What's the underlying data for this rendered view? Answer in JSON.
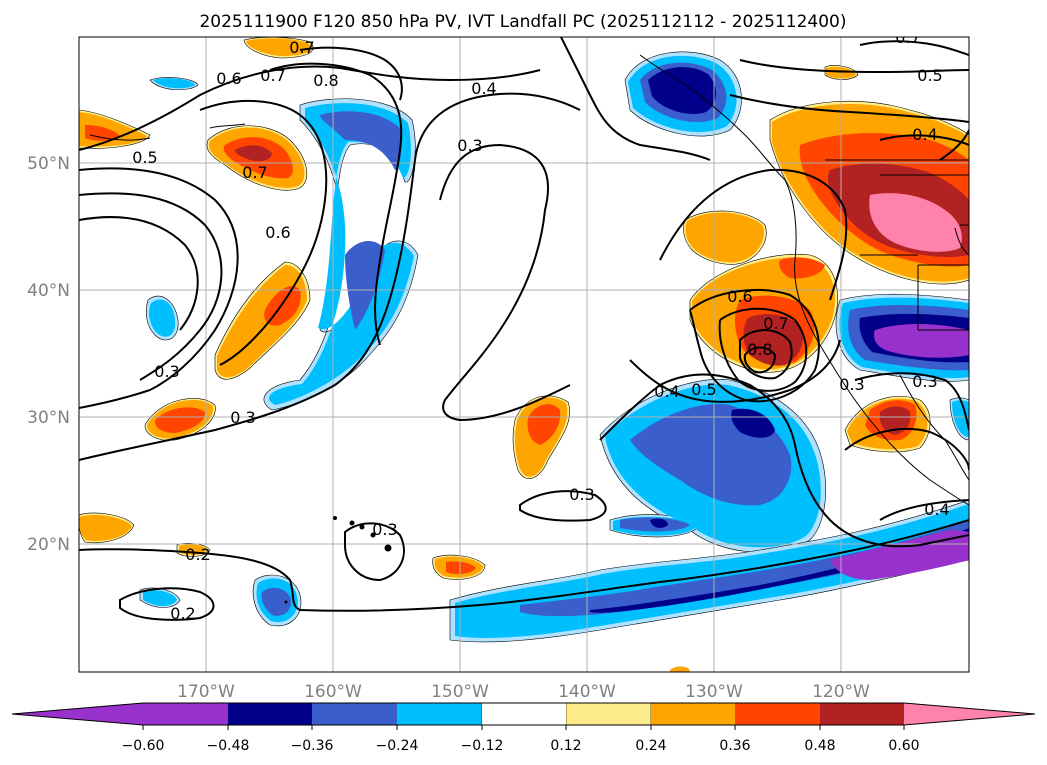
{
  "title": "2025111900 F120 850 hPa PV, IVT Landfall PC (2025112112 - 2025112400)",
  "colors": {
    "n060": "#9932cc",
    "n048": "#00008b",
    "n036": "#3a5fcd",
    "n024": "#00bfff",
    "n012": "#b0e2ff",
    "zero": "#ffffff",
    "p012": "#ffec8b",
    "p024": "#ffa500",
    "p036": "#ff4500",
    "p048": "#b22222",
    "p060": "#ff82ab",
    "grid": "#b0b0b0",
    "axis_text": "#808080"
  },
  "map": {
    "lon_ticks": [
      "170°W",
      "160°W",
      "150°W",
      "140°W",
      "130°W",
      "120°W"
    ],
    "lat_ticks": [
      "50°N",
      "40°N",
      "30°N",
      "20°N"
    ]
  },
  "colorbar": {
    "ticks": [
      "−0.60",
      "−0.48",
      "−0.36",
      "−0.24",
      "−0.12",
      "0.12",
      "0.24",
      "0.36",
      "0.48",
      "0.60"
    ]
  },
  "contour_labels": {
    "c1": "0.7",
    "c2": "0.6",
    "c3": "0.7",
    "c4": "0.8",
    "c5": "0.4",
    "c6": "0.3",
    "c7": "0.5",
    "c8": "0.7",
    "c9": "0.6",
    "c10": "0.3",
    "c11": "0.3",
    "c12": "0.4",
    "c13": "0.5",
    "c14": "0.6",
    "c15": "0.7",
    "c16": "0.8",
    "c17": "0.3",
    "c18": "0.3",
    "c19": "0.3",
    "c20": "0.2",
    "c21": "0.2",
    "c22": "0.4",
    "c23": "0.7",
    "c24": "0.5",
    "c25": "0.4",
    "c26": "0.3"
  }
}
